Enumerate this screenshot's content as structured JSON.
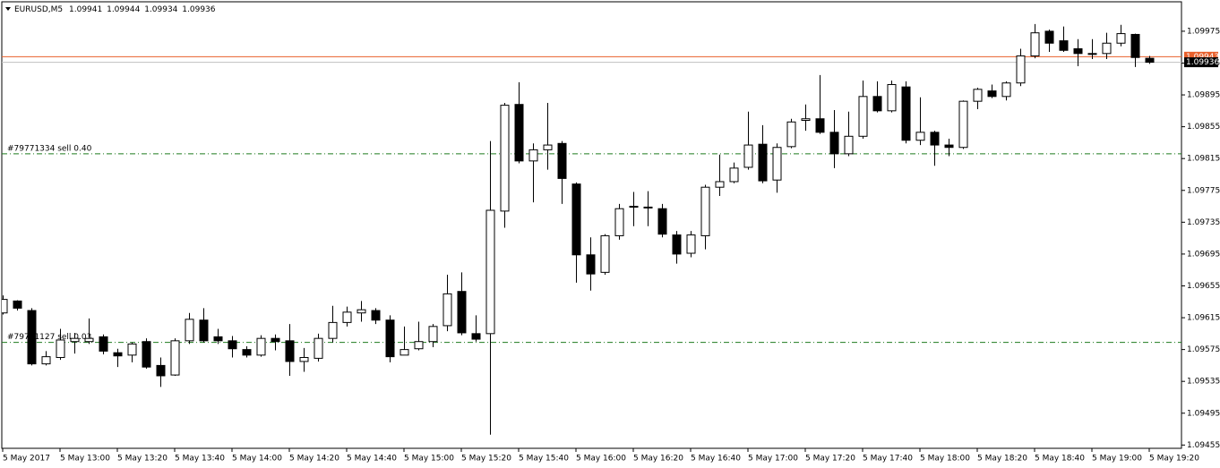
{
  "chart_data": {
    "type": "candlestick",
    "symbol": "EURUSD,M5",
    "categories": [
      "5 May 2017",
      null,
      null,
      null,
      "5 May 13:00",
      null,
      null,
      null,
      "5 May 13:20",
      null,
      null,
      null,
      "5 May 13:40",
      null,
      null,
      null,
      "5 May 14:00",
      null,
      null,
      null,
      "5 May 14:20",
      null,
      null,
      null,
      "5 May 14:40",
      null,
      null,
      null,
      "5 May 15:00",
      null,
      null,
      null,
      "5 May 15:20",
      null,
      null,
      null,
      "5 May 15:40",
      null,
      null,
      null,
      "5 May 16:00",
      null,
      null,
      null,
      "5 May 16:20",
      null,
      null,
      null,
      "5 May 16:40",
      null,
      null,
      null,
      "5 May 17:00",
      null,
      null,
      null,
      "5 May 17:20",
      null,
      null,
      null,
      "5 May 17:40",
      null,
      null,
      null,
      "5 May 18:00",
      null,
      null,
      null,
      "5 May 18:20",
      null,
      null,
      null,
      "5 May 18:40",
      null,
      null,
      null,
      "5 May 19:00",
      null,
      null,
      null,
      "5 May 19:20"
    ],
    "open": [
      1.09621,
      1.09636,
      1.09624,
      1.09557,
      1.09565,
      1.09585,
      1.09585,
      1.09591,
      1.09571,
      1.09568,
      1.09585,
      1.09555,
      1.09543,
      1.09586,
      1.09612,
      1.09591,
      1.09586,
      1.09575,
      1.09568,
      1.09589,
      1.09586,
      1.0956,
      1.09564,
      1.09589,
      1.09609,
      1.09621,
      1.09624,
      1.09612,
      1.09568,
      1.09576,
      1.09585,
      1.09605,
      1.09648,
      1.09595,
      1.09595,
      1.09749,
      1.09883,
      1.09812,
      1.09826,
      1.09834,
      1.09783,
      1.09694,
      1.09672,
      1.09718,
      1.09754,
      1.09754,
      1.09752,
      1.09719,
      1.09696,
      1.09718,
      1.09779,
      1.09786,
      1.09804,
      1.09833,
      1.09788,
      1.0983,
      1.09863,
      1.09865,
      1.09848,
      1.09821,
      1.09843,
      1.09893,
      1.09875,
      1.09905,
      1.09838,
      1.09848,
      1.09832,
      1.09829,
      1.09887,
      1.099,
      1.09893,
      1.0991,
      1.09944,
      1.09975,
      1.09963,
      1.09953,
      1.09947,
      1.09947,
      1.0996,
      1.09971,
      1.09941
    ],
    "high": [
      1.09643,
      1.09637,
      1.09627,
      1.09573,
      1.09601,
      1.09596,
      1.09614,
      1.09594,
      1.09576,
      1.09584,
      1.09589,
      1.09565,
      1.09589,
      1.09621,
      1.09627,
      1.09601,
      1.09592,
      1.09579,
      1.09593,
      1.09594,
      1.09607,
      1.09577,
      1.09595,
      1.0963,
      1.09629,
      1.09636,
      1.09627,
      1.09618,
      1.09604,
      1.0961,
      1.09607,
      1.09669,
      1.09672,
      1.09618,
      1.09837,
      1.09885,
      1.09911,
      1.09834,
      1.09885,
      1.09837,
      1.09785,
      1.09716,
      1.0972,
      1.09758,
      1.09773,
      1.09774,
      1.09758,
      1.09724,
      1.09724,
      1.09782,
      1.0982,
      1.0981,
      1.09874,
      1.09857,
      1.09834,
      1.09865,
      1.09883,
      1.0992,
      1.09876,
      1.09874,
      1.09913,
      1.09912,
      1.09913,
      1.09912,
      1.09892,
      1.0985,
      1.0984,
      1.09888,
      1.09904,
      1.09908,
      1.09912,
      1.09953,
      1.09984,
      1.09977,
      1.09981,
      1.09965,
      1.09965,
      1.09973,
      1.09983,
      1.09972,
      1.09944
    ],
    "low": [
      1.09619,
      1.09624,
      1.09555,
      1.09555,
      1.09562,
      1.0957,
      1.09582,
      1.09569,
      1.09553,
      1.09559,
      1.09551,
      1.09528,
      1.09542,
      1.09582,
      1.09584,
      1.09582,
      1.09565,
      1.09565,
      1.09566,
      1.09574,
      1.09542,
      1.09547,
      1.0956,
      1.09584,
      1.09604,
      1.0961,
      1.09607,
      1.09559,
      1.09568,
      1.09574,
      1.09578,
      1.09598,
      1.09593,
      1.09585,
      1.09468,
      1.09728,
      1.09809,
      1.0976,
      1.09801,
      1.09758,
      1.09659,
      1.09649,
      1.09669,
      1.09713,
      1.0973,
      1.0973,
      1.09716,
      1.09683,
      1.09691,
      1.09701,
      1.09768,
      1.09784,
      1.09801,
      1.09784,
      1.09772,
      1.09828,
      1.0985,
      1.09846,
      1.09803,
      1.09818,
      1.0984,
      1.09873,
      1.09873,
      1.09834,
      1.09832,
      1.09806,
      1.09818,
      1.09827,
      1.09877,
      1.09891,
      1.09888,
      1.09906,
      1.09941,
      1.09949,
      1.09949,
      1.09931,
      1.0994,
      1.0994,
      1.09956,
      1.0993,
      1.09934
    ],
    "close": [
      1.09638,
      1.09627,
      1.09557,
      1.09566,
      1.09587,
      1.09589,
      1.09589,
      1.09573,
      1.09567,
      1.09582,
      1.09553,
      1.09542,
      1.09586,
      1.09613,
      1.09586,
      1.09586,
      1.09576,
      1.09568,
      1.09589,
      1.09585,
      1.0956,
      1.09565,
      1.09589,
      1.09609,
      1.09622,
      1.09625,
      1.09612,
      1.09566,
      1.09575,
      1.09585,
      1.09604,
      1.09645,
      1.09596,
      1.09588,
      1.0975,
      1.09882,
      1.09812,
      1.09826,
      1.09832,
      1.0979,
      1.09694,
      1.0967,
      1.09718,
      1.09752,
      1.09755,
      1.09753,
      1.0972,
      1.09695,
      1.09719,
      1.09779,
      1.09786,
      1.09803,
      1.09832,
      1.09787,
      1.09829,
      1.09861,
      1.09865,
      1.09848,
      1.09821,
      1.09843,
      1.09893,
      1.09875,
      1.09908,
      1.09838,
      1.09848,
      1.09832,
      1.09829,
      1.09887,
      1.09902,
      1.09893,
      1.0991,
      1.09944,
      1.09973,
      1.0996,
      1.09951,
      1.09947,
      1.09946,
      1.0996,
      1.09972,
      1.09942,
      1.09936
    ],
    "up_color": "#ffffff",
    "down_color": "#000000",
    "ylim": [
      1.09452,
      1.10012
    ],
    "yticks": [
      1.09455,
      1.09495,
      1.09535,
      1.09575,
      1.09615,
      1.09655,
      1.09695,
      1.09735,
      1.09775,
      1.09815,
      1.09855,
      1.09895,
      1.09935,
      1.09975
    ],
    "orders": [
      {
        "label": "#79771334 sell 0.40",
        "value": 1.09821,
        "color": "#1e7b1e"
      },
      {
        "label": "#79771127 sell 0.03",
        "value": 1.09584,
        "color": "#1e7b1e"
      }
    ],
    "price_lines": [
      {
        "value": 1.09943,
        "color": "#e8602c"
      },
      {
        "value": 1.09936,
        "color": "#000000"
      }
    ]
  }
}
